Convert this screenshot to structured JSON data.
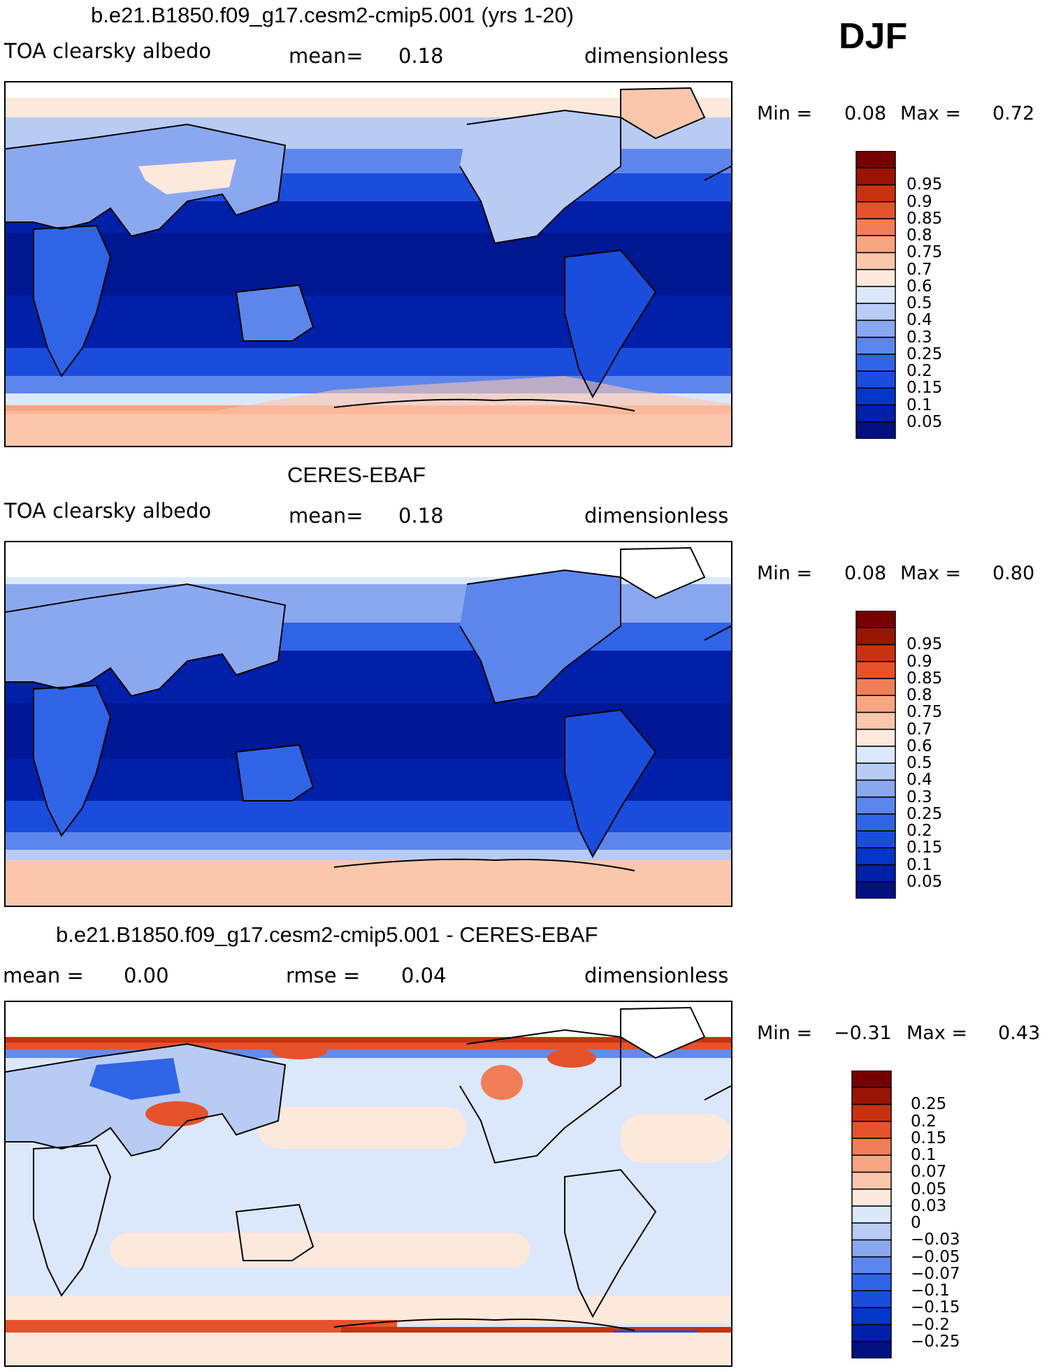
{
  "season": "DJF",
  "colors": {
    "absolute": [
      "#00107e",
      "#0020aa",
      "#0335c8",
      "#1a4ddc",
      "#2f64e6",
      "#5c86ec",
      "#8aa8f0",
      "#b7cbf5",
      "#dbe7fb",
      "#fde8dc",
      "#fbc7ac",
      "#f7a582",
      "#f27e58",
      "#e6522c",
      "#c8320f",
      "#9a1404",
      "#750000"
    ],
    "difference": [
      "#00107e",
      "#0020aa",
      "#0335c8",
      "#1a4ddc",
      "#2f64e6",
      "#5c86ec",
      "#8aa8f0",
      "#b7cbf5",
      "#dbe7fb",
      "#fde8dc",
      "#fbc7ac",
      "#f7a582",
      "#f27e58",
      "#e6522c",
      "#c8320f",
      "#9a1404",
      "#750000"
    ]
  },
  "panels": [
    {
      "title": "b.e21.B1850.f09_g17.cesm2-cmip5.001 (yrs 1-20)",
      "variable": "TOA clearsky albedo",
      "stat_label": "mean=",
      "stat_value": "0.18",
      "units": "dimensionless",
      "min_label": "Min =",
      "min_value": "0.08",
      "max_label": "Max =",
      "max_value": "0.72",
      "levels": [
        "0.05",
        "0.1",
        "0.15",
        "0.2",
        "0.25",
        "0.3",
        "0.4",
        "0.5",
        "0.6",
        "0.7",
        "0.75",
        "0.8",
        "0.85",
        "0.9",
        "0.95"
      ]
    },
    {
      "title": "CERES-EBAF",
      "variable": "TOA clearsky albedo",
      "stat_label": "mean=",
      "stat_value": "0.18",
      "units": "dimensionless",
      "min_label": "Min =",
      "min_value": "0.08",
      "max_label": "Max =",
      "max_value": "0.80",
      "levels": [
        "0.05",
        "0.1",
        "0.15",
        "0.2",
        "0.25",
        "0.3",
        "0.4",
        "0.5",
        "0.6",
        "0.7",
        "0.75",
        "0.8",
        "0.85",
        "0.9",
        "0.95"
      ]
    },
    {
      "title": "b.e21.B1850.f09_g17.cesm2-cmip5.001 - CERES-EBAF",
      "stat_label": "mean =",
      "stat_value": "0.00",
      "rmse_label": "rmse =",
      "rmse_value": "0.04",
      "units": "dimensionless",
      "min_label": "Min =",
      "min_value": "−0.31",
      "max_label": "Max =",
      "max_value": "0.43",
      "levels": [
        "−0.25",
        "−0.2",
        "−0.15",
        "−0.1",
        "−0.07",
        "−0.05",
        "−0.03",
        "0",
        "0.03",
        "0.05",
        "0.07",
        "0.1",
        "0.15",
        "0.2",
        "0.25"
      ]
    }
  ]
}
